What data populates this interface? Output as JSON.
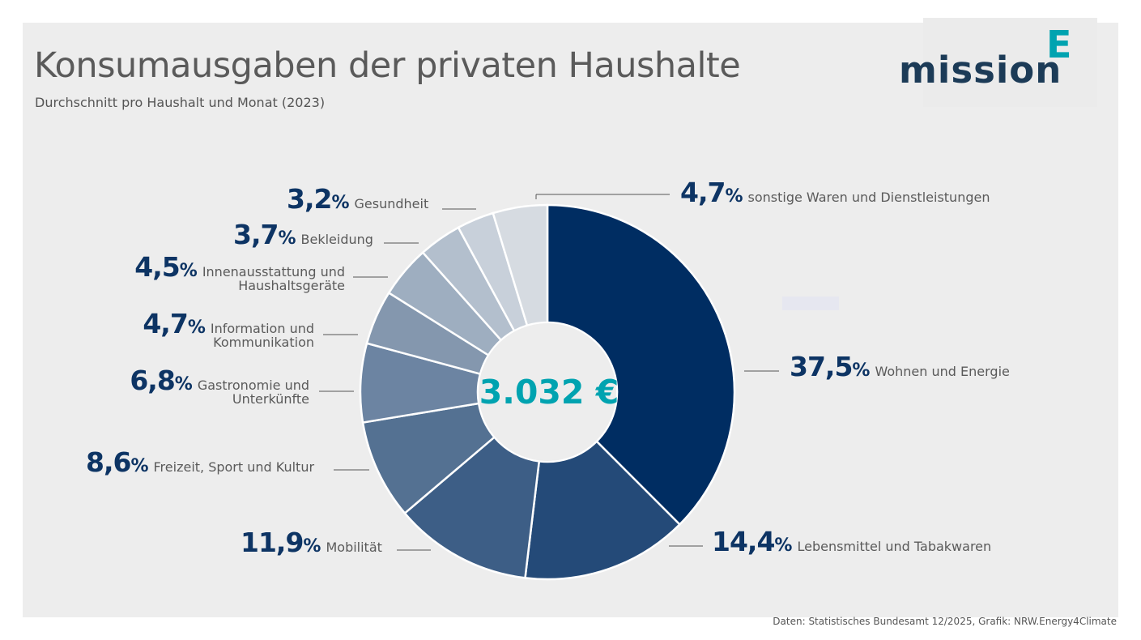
{
  "header": {
    "title": "Konsumausgaben der privaten Haushalte",
    "subtitle": "Durchschnitt pro Haushalt und Monat (2023)"
  },
  "logo": {
    "text": "mission",
    "accent_letter": "E",
    "text_color": "#1c3b57",
    "accent_color": "#00a3b0"
  },
  "center": {
    "value": "3.032 €",
    "color": "#00a3b0"
  },
  "source": "Daten: Statistisches Bundesamt 12/2025, Grafik: NRW.Energy4Climate",
  "chart_data": {
    "type": "pie",
    "variant": "donut",
    "title": "Konsumausgaben der privaten Haushalte",
    "subtitle": "Durchschnitt pro Haushalt und Monat (2023)",
    "total_label": "3.032 €",
    "unit": "%",
    "slices": [
      {
        "label": "Wohnen und Energie",
        "value": 37.5,
        "display": "37,5",
        "color": "#002d62"
      },
      {
        "label": "Lebensmittel und Tabakwaren",
        "value": 14.4,
        "display": "14,4",
        "color": "#244a78"
      },
      {
        "label": "Mobilität",
        "value": 11.9,
        "display": "11,9",
        "color": "#3d5e86"
      },
      {
        "label": "Freizeit, Sport und Kultur",
        "value": 8.6,
        "display": "8,6",
        "color": "#547192"
      },
      {
        "label": "Gastronomie und Unterkünfte",
        "value": 6.8,
        "display": "6,8",
        "color": "#6c84a2",
        "lines": [
          "Gastronomie und",
          "Unterkünfte"
        ]
      },
      {
        "label": "Information und Kommunikation",
        "value": 4.7,
        "display": "4,7",
        "color": "#8497ae",
        "lines": [
          "Information und",
          "Kommunikation"
        ]
      },
      {
        "label": "Innenausstattung und Haushaltsgeräte",
        "value": 4.5,
        "display": "4,5",
        "color": "#9eaec0",
        "lines": [
          "Innenausstattung und",
          "Haushaltsgeräte"
        ]
      },
      {
        "label": "Bekleidung",
        "value": 3.7,
        "display": "3,7",
        "color": "#b3bfcd"
      },
      {
        "label": "Gesundheit",
        "value": 3.2,
        "display": "3,2",
        "color": "#c8d0da"
      },
      {
        "label": "sonstige Waren und Dienstleistungen",
        "value": 4.7,
        "display": "4,7",
        "color": "#d6dbe1"
      }
    ],
    "start_angle": "12 o'clock, clockwise",
    "legend": "none (direct labels)"
  }
}
